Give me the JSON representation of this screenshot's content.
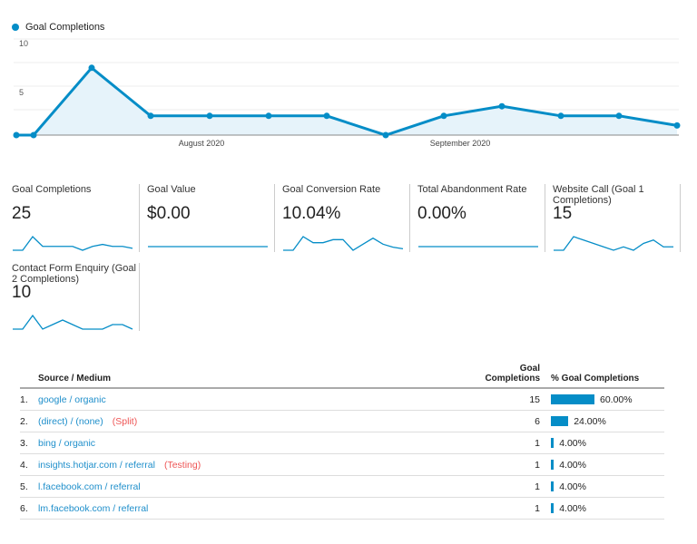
{
  "chart_data": {
    "type": "area",
    "series": [
      {
        "name": "Goal Completions",
        "values": [
          0,
          0,
          7,
          2,
          2,
          2,
          2,
          0,
          2,
          3,
          2,
          2,
          1
        ]
      }
    ],
    "y_ticks": [
      "10",
      "5"
    ],
    "ylim": [
      0,
      10
    ],
    "x_tick_labels": [
      "August 2020",
      "September 2020"
    ],
    "grid": true,
    "legend": "top-left",
    "color": "#058dc7"
  },
  "metrics": [
    {
      "label": "Goal Completions",
      "value": "25",
      "spark": [
        0,
        0,
        7,
        2,
        2,
        2,
        2,
        0,
        2,
        3,
        2,
        2,
        1
      ]
    },
    {
      "label": "Goal Value",
      "value": "$0.00",
      "spark": [
        0,
        0,
        0,
        0,
        0,
        0,
        0,
        0,
        0,
        0,
        0,
        0,
        0
      ]
    },
    {
      "label": "Goal Conversion Rate",
      "value": "10.04%",
      "spark": [
        0,
        0,
        9,
        5,
        5,
        7,
        7,
        0,
        4,
        8,
        4,
        2,
        1
      ]
    },
    {
      "label": "Total Abandonment Rate",
      "value": "0.00%",
      "spark": [
        0,
        0,
        0,
        0,
        0,
        0,
        0,
        0,
        0,
        0,
        0,
        0,
        0
      ]
    },
    {
      "label": "Website Call (Goal 1 Completions)",
      "value": "15",
      "spark": [
        0,
        0,
        4,
        3,
        2,
        1,
        0,
        1,
        0,
        2,
        3,
        1,
        1
      ]
    },
    {
      "label": "Contact Form Enquiry (Goal 2 Completions)",
      "value": "10",
      "spark": [
        0,
        0,
        3,
        0,
        1,
        2,
        1,
        0,
        0,
        0,
        1,
        1,
        0
      ]
    }
  ],
  "table": {
    "headers": {
      "source": "Source / Medium",
      "gc": "Goal Completions",
      "pct": "% Goal Completions"
    },
    "rows": [
      {
        "num": "1.",
        "source": "google / organic",
        "tag": "",
        "gc": "15",
        "pct": "60.00%",
        "share": 60
      },
      {
        "num": "2.",
        "source": "(direct) / (none)",
        "tag": "(Split)",
        "gc": "6",
        "pct": "24.00%",
        "share": 24
      },
      {
        "num": "3.",
        "source": "bing / organic",
        "tag": "",
        "gc": "1",
        "pct": "4.00%",
        "share": 4
      },
      {
        "num": "4.",
        "source": "insights.hotjar.com / referral",
        "tag": "(Testing)",
        "gc": "1",
        "pct": "4.00%",
        "share": 4
      },
      {
        "num": "5.",
        "source": "l.facebook.com / referral",
        "tag": "",
        "gc": "1",
        "pct": "4.00%",
        "share": 4
      },
      {
        "num": "6.",
        "source": "lm.facebook.com / referral",
        "tag": "",
        "gc": "1",
        "pct": "4.00%",
        "share": 4
      }
    ]
  }
}
